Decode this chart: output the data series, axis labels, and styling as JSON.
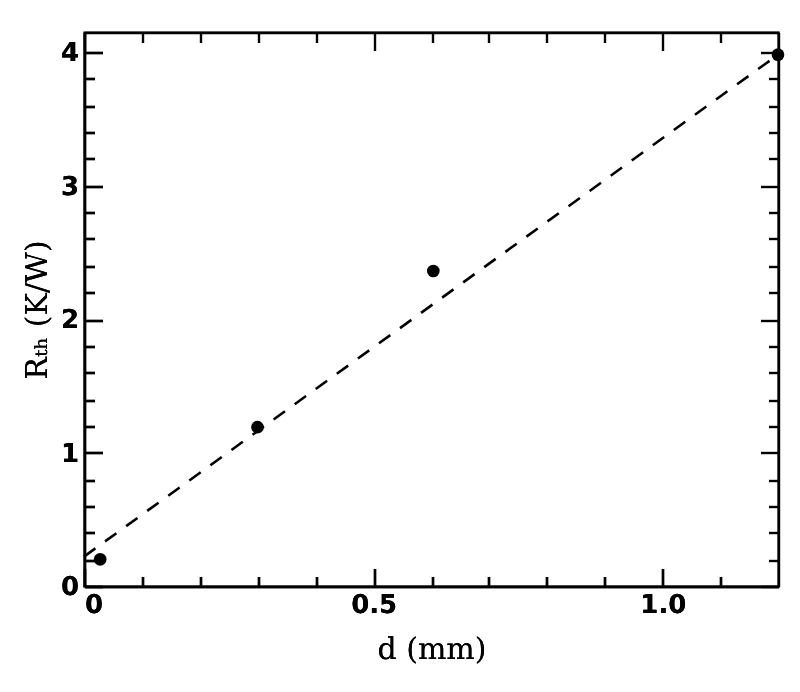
{
  "chart_data": {
    "type": "scatter",
    "xlabel": "d (mm)",
    "ylabel": "Rₜₕ (K/W)",
    "xlim": [
      0,
      1.2
    ],
    "ylim": [
      0,
      4.15
    ],
    "xticks": [
      0,
      {
        "value": 0.1,
        "label": null
      },
      {
        "value": 0.2,
        "label": null
      },
      {
        "value": 0.3,
        "label": null
      },
      {
        "value": 0.4,
        "label": null
      },
      0.5,
      {
        "value": 0.6,
        "label": null
      },
      {
        "value": 0.7,
        "label": null
      },
      {
        "value": 0.8,
        "label": null
      },
      {
        "value": 0.9,
        "label": null
      },
      {
        "value": 1,
        "label": "1.0"
      },
      {
        "value": 1.1,
        "label": null
      }
    ],
    "yticks": [
      0,
      {
        "value": 0.2,
        "label": null
      },
      {
        "value": 0.4,
        "label": null
      },
      {
        "value": 0.6,
        "label": null
      },
      {
        "value": 0.8,
        "label": null
      },
      1,
      {
        "value": 1.2,
        "label": null
      },
      {
        "value": 1.4,
        "label": null
      },
      {
        "value": 1.6,
        "label": null
      },
      {
        "value": 1.8,
        "label": null
      },
      2,
      {
        "value": 2.2,
        "label": null
      },
      {
        "value": 2.4,
        "label": null
      },
      {
        "value": 2.6,
        "label": null
      },
      {
        "value": 2.8,
        "label": null
      },
      3,
      {
        "value": 3.2,
        "label": null
      },
      {
        "value": 3.4,
        "label": null
      },
      {
        "value": 3.6,
        "label": null
      },
      {
        "value": 3.8,
        "label": null
      },
      4
    ],
    "grid": false,
    "series": [
      {
        "color": "#000000",
        "marker": "circle",
        "x": [
          0.028,
          0.3,
          0.604,
          1.2
        ],
        "values": [
          0.2,
          1.19,
          2.36,
          3.98
        ]
      },
      {
        "type": "line",
        "color": "#000000",
        "marker": "none",
        "line_style": "dashed",
        "x": [
          0,
          1.2
        ],
        "values": [
          0.22,
          3.98
        ]
      }
    ]
  }
}
